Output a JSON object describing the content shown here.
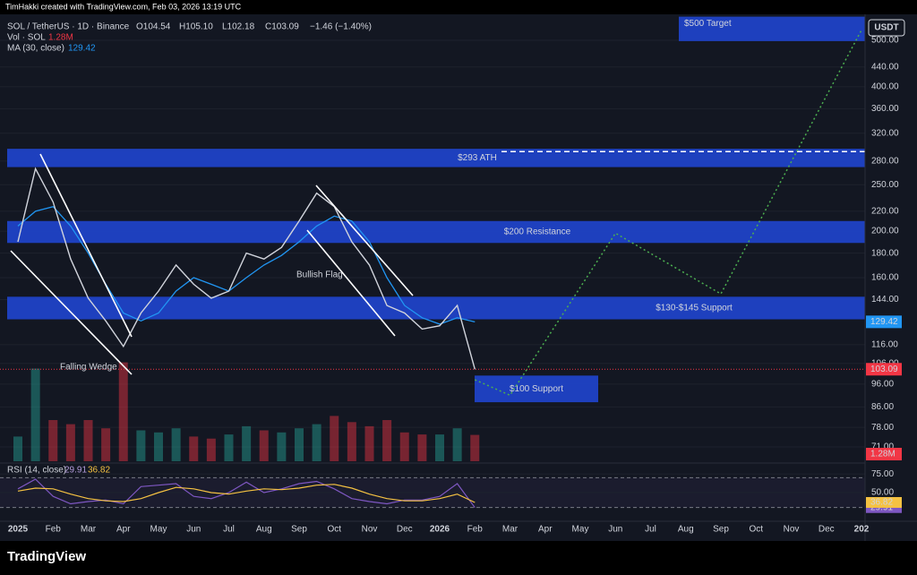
{
  "header": {
    "credit": "TimHakki created with TradingView.com, Feb 03, 2026 13:19 UTC",
    "ohlc": [
      "O104.54",
      "H105.10",
      "L102.18",
      "C103.09",
      "−1.46 (−1.40%)"
    ],
    "logo": "TradingView"
  },
  "chart_data": {
    "type": "line",
    "currency": "USDT",
    "log": true,
    "categories": [
      "2025",
      null,
      "Feb",
      null,
      "Mar",
      null,
      "Apr",
      null,
      "May",
      null,
      "Jun",
      null,
      "Jul",
      null,
      "Aug",
      null,
      "Sep",
      null,
      "Oct",
      null,
      "Nov",
      null,
      "Dec",
      null,
      "2026",
      null,
      "Feb",
      null,
      "Mar",
      null,
      "Apr",
      null,
      "May",
      null,
      "Jun",
      null,
      "Jul",
      null,
      "Aug",
      null,
      "Sep",
      null,
      "Oct",
      null,
      "Nov",
      null,
      "Dec",
      null,
      "202"
    ],
    "series": [
      {
        "name": "SOL / TetherUS · 1D · Binance",
        "color": "#d1d4dc",
        "values": [
          190,
          270,
          230,
          175,
          145,
          130,
          115,
          135,
          150,
          170,
          155,
          145,
          150,
          180,
          175,
          185,
          210,
          240,
          225,
          190,
          170,
          140,
          135,
          125,
          127,
          140,
          103.09,
          null,
          null,
          null,
          null,
          null,
          null,
          null,
          null,
          null,
          null,
          null,
          null,
          null,
          null,
          null,
          null,
          null,
          null,
          null,
          null,
          null,
          null
        ]
      },
      {
        "name": "MA (30, close)",
        "color": "#2196f3",
        "values": [
          205,
          220,
          225,
          205,
          180,
          155,
          135,
          130,
          135,
          150,
          160,
          155,
          150,
          160,
          170,
          178,
          190,
          205,
          215,
          210,
          190,
          160,
          140,
          132,
          128,
          132,
          129.42,
          null,
          null,
          null,
          null,
          null,
          null,
          null,
          null,
          null,
          null,
          null,
          null,
          null,
          null,
          null,
          null,
          null,
          null,
          null,
          null,
          null,
          null
        ]
      },
      {
        "color": "#4caf50",
        "values": [
          null,
          null,
          null,
          null,
          null,
          null,
          null,
          null,
          null,
          null,
          null,
          null,
          null,
          null,
          null,
          null,
          null,
          null,
          null,
          null,
          null,
          null,
          null,
          null,
          null,
          null,
          98,
          null,
          91,
          null,
          null,
          null,
          null,
          null,
          198,
          null,
          null,
          null,
          null,
          null,
          148,
          null,
          null,
          null,
          null,
          null,
          null,
          null,
          525
        ]
      }
    ],
    "ylim": [
      66,
      560
    ],
    "yticks": [
      {
        "value": 71,
        "label": "71.00"
      },
      {
        "value": 78,
        "label": "78.00"
      },
      {
        "value": 86,
        "label": "86.00"
      },
      {
        "value": 96,
        "label": "96.00"
      },
      {
        "value": 106,
        "label": "106.00"
      },
      {
        "value": 116,
        "label": "116.00"
      },
      {
        "value": 144,
        "label": "144.00"
      },
      {
        "value": 160,
        "label": "160.00"
      },
      {
        "value": 180,
        "label": "180.00"
      },
      {
        "value": 200,
        "label": "200.00"
      },
      {
        "value": 220,
        "label": "220.00"
      },
      {
        "value": 250,
        "label": "250.00"
      },
      {
        "value": 280,
        "label": "280.00"
      },
      {
        "value": 320,
        "label": "320.00"
      },
      {
        "value": 360,
        "label": "360.00"
      },
      {
        "value": 400,
        "label": "400.00"
      },
      {
        "value": 440,
        "label": "440.00"
      },
      {
        "value": 500,
        "label": "500.00"
      }
    ],
    "grid": true,
    "zones": [
      {
        "label": "$500 Target",
        "range": [
          498,
          560
        ],
        "color": "#1f44cc"
      },
      {
        "label": "$293 ATH",
        "range": [
          272,
          297
        ],
        "level": 293,
        "color": "#1f44cc"
      },
      {
        "label": "$200 Resistance",
        "range": [
          189,
          210
        ],
        "color": "#1f44cc"
      },
      {
        "label": "$130-$145 Support",
        "range": [
          131,
          146
        ],
        "color": "#1f44cc"
      },
      {
        "label": "$100 Support",
        "range": [
          88,
          100
        ],
        "color": "#1f44cc"
      }
    ],
    "annotations": [
      "Falling Wedge",
      "Bullish Flag"
    ],
    "last_price_color": "#f23645",
    "volume": {
      "name": "Vol · SOL",
      "color": "#f23645",
      "ylim": [
        0,
        6
      ],
      "last_label": "1.28M",
      "values": [
        1.2,
        4.5,
        2.0,
        1.8,
        2.0,
        1.6,
        4.8,
        1.5,
        1.4,
        1.6,
        1.2,
        1.1,
        1.3,
        1.7,
        1.5,
        1.4,
        1.6,
        1.8,
        2.2,
        1.9,
        1.7,
        2.0,
        1.4,
        1.3,
        1.3,
        1.6,
        1.28
      ]
    },
    "rsi": {
      "name": "RSI (14, close)",
      "ylim": [
        14,
        86
      ],
      "yticks": [
        {
          "value": 75,
          "label": "75.00"
        },
        {
          "value": 50,
          "label": "50.00"
        }
      ],
      "bands": [
        30,
        70
      ],
      "series": [
        {
          "color": "#7e57c2",
          "values": [
            55,
            68,
            45,
            35,
            38,
            40,
            35,
            58,
            60,
            62,
            45,
            42,
            50,
            64,
            50,
            55,
            62,
            65,
            55,
            42,
            38,
            35,
            40,
            40,
            45,
            62,
            29.91
          ]
        },
        {
          "color": "#f5c242",
          "values": [
            52,
            56,
            55,
            48,
            42,
            39,
            38,
            42,
            50,
            57,
            55,
            50,
            48,
            52,
            55,
            54,
            56,
            60,
            61,
            56,
            48,
            42,
            39,
            39,
            42,
            48,
            36.82
          ]
        }
      ]
    }
  }
}
